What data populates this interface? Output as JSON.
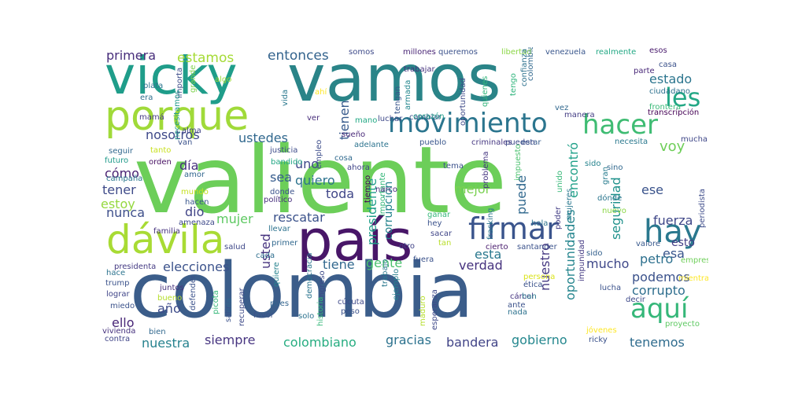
{
  "words": [
    {
      "text": "valiente",
      "color": "#6cce59"
    },
    {
      "text": "colombia",
      "color": "#3b5d8a"
    },
    {
      "text": "vamos",
      "color": "#2a8488"
    },
    {
      "text": "vicky",
      "color": "#1f9d8a"
    },
    {
      "text": "país",
      "color": "#481668"
    },
    {
      "text": "porque",
      "color": "#a0da39"
    },
    {
      "text": "dávila",
      "color": "#a8db34"
    },
    {
      "text": "movimiento",
      "color": "#2b758e"
    },
    {
      "text": "hacer",
      "color": "#3fbc73"
    },
    {
      "text": "hay",
      "color": "#2a788e"
    },
    {
      "text": "firmar",
      "color": "#3a548c"
    },
    {
      "text": "aquí",
      "color": "#35b779"
    },
    {
      "text": "les",
      "color": "#22a785"
    },
    {
      "text": "voy",
      "color": "#6ece58"
    },
    {
      "text": "estado",
      "color": "#2b758e"
    },
    {
      "text": "entonces",
      "color": "#33638d"
    },
    {
      "text": "estamos",
      "color": "#a5db36"
    },
    {
      "text": "primera",
      "color": "#472d7b"
    },
    {
      "text": "nosotros",
      "color": "#3e4989"
    },
    {
      "text": "ustedes",
      "color": "#31688e"
    },
    {
      "text": "presidente",
      "color": "#1f9e89"
    },
    {
      "text": "tienen",
      "color": "#375a8c"
    },
    {
      "text": "encontró",
      "color": "#1fa088"
    },
    {
      "text": "seguridad",
      "color": "#20928c"
    },
    {
      "text": "fuerza",
      "color": "#3f4788"
    },
    {
      "text": "esa",
      "color": "#39558c"
    },
    {
      "text": "ese",
      "color": "#3a538b"
    },
    {
      "text": "esto",
      "color": "#433e85"
    },
    {
      "text": "mucho",
      "color": "#3f4889"
    },
    {
      "text": "petro",
      "color": "#2d708e"
    },
    {
      "text": "podemos",
      "color": "#3b528b"
    },
    {
      "text": "corrupto",
      "color": "#2e6e8e"
    },
    {
      "text": "uno",
      "color": "#3f4889"
    },
    {
      "text": "sea",
      "color": "#365c8d"
    },
    {
      "text": "quiero",
      "color": "#2c728e"
    },
    {
      "text": "corrupción",
      "color": "#25848e"
    },
    {
      "text": "puede",
      "color": "#31688e"
    },
    {
      "text": "mejor",
      "color": "#7ad151"
    },
    {
      "text": "toda",
      "color": "#404688"
    },
    {
      "text": "día",
      "color": "#46307e"
    },
    {
      "text": "cómo",
      "color": "#481f71"
    },
    {
      "text": "tener",
      "color": "#3e4a89"
    },
    {
      "text": "estoy",
      "color": "#95d840"
    },
    {
      "text": "nunca",
      "color": "#3d4e8a"
    },
    {
      "text": "dio",
      "color": "#414487"
    },
    {
      "text": "mujer",
      "color": "#5ec962"
    },
    {
      "text": "rescatar",
      "color": "#3b528b"
    },
    {
      "text": "gente",
      "color": "#4ac16d"
    },
    {
      "text": "esta",
      "color": "#2a788e"
    },
    {
      "text": "tiene",
      "color": "#31688e"
    },
    {
      "text": "verdad",
      "color": "#46327e"
    },
    {
      "text": "nuestro",
      "color": "#453882"
    },
    {
      "text": "oportunidades",
      "color": "#25858e"
    },
    {
      "text": "elecciones",
      "color": "#3b528b"
    },
    {
      "text": "usted",
      "color": "#46337f"
    },
    {
      "text": "año",
      "color": "#3e4c8a"
    },
    {
      "text": "ello",
      "color": "#482677"
    },
    {
      "text": "nuestra",
      "color": "#26828e"
    },
    {
      "text": "siempre",
      "color": "#463480"
    },
    {
      "text": "colombiano",
      "color": "#27ad81"
    },
    {
      "text": "gracias",
      "color": "#2c728e"
    },
    {
      "text": "bandera",
      "color": "#414487"
    },
    {
      "text": "gobierno",
      "color": "#24878e"
    },
    {
      "text": "tenemos",
      "color": "#2f6c8e"
    },
    {
      "text": "somos",
      "color": "#3e4a89"
    },
    {
      "text": "millones",
      "color": "#482475"
    },
    {
      "text": "queremos",
      "color": "#3b528b"
    },
    {
      "text": "libertad",
      "color": "#8bd646"
    },
    {
      "text": "venezuela",
      "color": "#39568c"
    },
    {
      "text": "realmente",
      "color": "#22a884"
    },
    {
      "text": "esos",
      "color": "#481a6c"
    },
    {
      "text": "casa",
      "color": "#3b528b"
    },
    {
      "text": "parte",
      "color": "#482878"
    },
    {
      "text": "ciudadano",
      "color": "#2c718e"
    },
    {
      "text": "frontera",
      "color": "#38b977"
    },
    {
      "text": "transcripción",
      "color": "#440154"
    },
    {
      "text": "plata",
      "color": "#2b748e"
    },
    {
      "text": "importa",
      "color": "#3d4e8a"
    },
    {
      "text": "grande",
      "color": "#7fd34e"
    },
    {
      "text": "algo",
      "color": "#9bd93c"
    },
    {
      "text": "ahí",
      "color": "#fde725"
    },
    {
      "text": "era",
      "color": "#2e6f8e"
    },
    {
      "text": "necesitamos",
      "color": "#1f9a8a"
    },
    {
      "text": "vida",
      "color": "#2a788e"
    },
    {
      "text": "trabajar",
      "color": "#46337f"
    },
    {
      "text": "armada",
      "color": "#24878e"
    },
    {
      "text": "tengan",
      "color": "#39568c"
    },
    {
      "text": "colombia",
      "color": "#31688e"
    },
    {
      "text": "luchar",
      "color": "#3e4989"
    },
    {
      "text": "cambiar",
      "color": "#3b528b"
    },
    {
      "text": "oportunidad",
      "color": "#3e4a89"
    },
    {
      "text": "quienes",
      "color": "#31b57b"
    },
    {
      "text": "tengo",
      "color": "#2fb47c"
    },
    {
      "text": "confianza",
      "color": "#2d718e"
    },
    {
      "text": "vez",
      "color": "#31688e"
    },
    {
      "text": "manera",
      "color": "#433d84"
    },
    {
      "text": "corazón",
      "color": "#1f9e89"
    },
    {
      "text": "mano",
      "color": "#22a884"
    },
    {
      "text": "mamá",
      "color": "#443983"
    },
    {
      "text": "alma",
      "color": "#414487"
    },
    {
      "text": "van",
      "color": "#3b528b"
    },
    {
      "text": "ver",
      "color": "#472d7b"
    },
    {
      "text": "justicia",
      "color": "#3e4c8a"
    },
    {
      "text": "tanto",
      "color": "#c8e020"
    },
    {
      "text": "seguir",
      "color": "#31688e"
    },
    {
      "text": "bandido",
      "color": "#22a785"
    },
    {
      "text": "empleo",
      "color": "#3d4d8a"
    },
    {
      "text": "sueño",
      "color": "#482878"
    },
    {
      "text": "adelante",
      "color": "#2c738e"
    },
    {
      "text": "pueblo",
      "color": "#39568c"
    },
    {
      "text": "criminales",
      "color": "#453781"
    },
    {
      "text": "estar",
      "color": "#375b8d"
    },
    {
      "text": "pueden",
      "color": "#3e4a89"
    },
    {
      "text": "necesita",
      "color": "#2a788e"
    },
    {
      "text": "mucha",
      "color": "#3f4788"
    },
    {
      "text": "futuro",
      "color": "#1f9a8a"
    },
    {
      "text": "orden",
      "color": "#471063"
    },
    {
      "text": "cosa",
      "color": "#306a8e"
    },
    {
      "text": "ahora",
      "color": "#404588"
    },
    {
      "text": "tema",
      "color": "#3b518b"
    },
    {
      "text": "problema",
      "color": "#453581"
    },
    {
      "text": "impuesto",
      "color": "#4ac16d"
    },
    {
      "text": "unido",
      "color": "#37b878"
    },
    {
      "text": "sido",
      "color": "#25838e"
    },
    {
      "text": "gran",
      "color": "#287c8e"
    },
    {
      "text": "sino",
      "color": "#31688e"
    },
    {
      "text": "campaña",
      "color": "#2a778e"
    },
    {
      "text": "amor",
      "color": "#31668e"
    },
    {
      "text": "importante",
      "color": "#34b679"
    },
    {
      "text": "narco",
      "color": "#472c7a"
    },
    {
      "text": "periodista",
      "color": "#3e4c8a"
    },
    {
      "text": "mundo",
      "color": "#c5e021"
    },
    {
      "text": "donde",
      "color": "#3b528b"
    },
    {
      "text": "político",
      "color": "#472f7d"
    },
    {
      "text": "dónde",
      "color": "#2a768e"
    },
    {
      "text": "nuevo",
      "color": "#8bd646"
    },
    {
      "text": "hacen",
      "color": "#39568c"
    },
    {
      "text": "amenaza",
      "color": "#3e4989"
    },
    {
      "text": "ganar",
      "color": "#35b779"
    },
    {
      "text": "hey",
      "color": "#3b528b"
    },
    {
      "text": "hola",
      "color": "#2c728e"
    },
    {
      "text": "poder",
      "color": "#433e85"
    },
    {
      "text": "mujeres",
      "color": "#2a788e"
    },
    {
      "text": "fracking",
      "color": "#2a768e"
    },
    {
      "text": "familia",
      "color": "#46327e"
    },
    {
      "text": "salud",
      "color": "#3f4889"
    },
    {
      "text": "cada",
      "color": "#2e6e8e"
    },
    {
      "text": "sacar",
      "color": "#404688"
    },
    {
      "text": "primer",
      "color": "#31688e"
    },
    {
      "text": "tan",
      "color": "#b8de29"
    },
    {
      "text": "cierto",
      "color": "#481b6d"
    },
    {
      "text": "santander",
      "color": "#3b528b"
    },
    {
      "text": "valore",
      "color": "#38598c"
    },
    {
      "text": "empresa",
      "color": "#6ece58"
    },
    {
      "text": "otro",
      "color": "#404387"
    },
    {
      "text": "fuera",
      "color": "#3b528b"
    },
    {
      "text": "presidenta",
      "color": "#443a83"
    },
    {
      "text": "hace",
      "color": "#2c738e"
    },
    {
      "text": "llevar",
      "color": "#2c728e"
    },
    {
      "text": "democracia",
      "color": "#2b758e"
    },
    {
      "text": "trump",
      "color": "#3b528b"
    },
    {
      "text": "lograr",
      "color": "#404588"
    },
    {
      "text": "juntos",
      "color": "#46327e"
    },
    {
      "text": "bueno",
      "color": "#b5de2b"
    },
    {
      "text": "defender",
      "color": "#3b528b"
    },
    {
      "text": "ella",
      "color": "#31688e"
    },
    {
      "text": "quiere",
      "color": "#26828e"
    },
    {
      "text": "congreso",
      "color": "#3e4a89"
    },
    {
      "text": "historia",
      "color": "#35b779"
    },
    {
      "text": "pues",
      "color": "#32648e"
    },
    {
      "text": "tiempo",
      "color": "#440154"
    },
    {
      "text": "trabajo",
      "color": "#2a788e"
    },
    {
      "text": "ejemplo",
      "color": "#26818e"
    },
    {
      "text": "maduro",
      "color": "#b5de2b"
    },
    {
      "text": "esperanza",
      "color": "#3e4989"
    },
    {
      "text": "persona",
      "color": "#dae319"
    },
    {
      "text": "ética",
      "color": "#3b528b"
    },
    {
      "text": "cárcel",
      "color": "#463480"
    },
    {
      "text": "han",
      "color": "#2a788e"
    },
    {
      "text": "ante",
      "color": "#3b528b"
    },
    {
      "text": "nada",
      "color": "#2c728e"
    },
    {
      "text": "lucha",
      "color": "#3b528b"
    },
    {
      "text": "sido",
      "color": "#34608d"
    },
    {
      "text": "impunidad",
      "color": "#443a83"
    },
    {
      "text": "mientras",
      "color": "#fde725"
    },
    {
      "text": "decir",
      "color": "#3e4989"
    },
    {
      "text": "miedo",
      "color": "#3b528b"
    },
    {
      "text": "vivienda",
      "color": "#46327e"
    },
    {
      "text": "contra",
      "color": "#404588"
    },
    {
      "text": "bien",
      "color": "#31688e"
    },
    {
      "text": "picota",
      "color": "#35b779"
    },
    {
      "text": "salir",
      "color": "#3b528b"
    },
    {
      "text": "recuperar",
      "color": "#3e4a89"
    },
    {
      "text": "favor",
      "color": "#3b528b"
    },
    {
      "text": "solo",
      "color": "#2c728e"
    },
    {
      "text": "cúcuta",
      "color": "#3e4989"
    },
    {
      "text": "peso",
      "color": "#3b528b"
    },
    {
      "text": "jóvenes",
      "color": "#fde725"
    },
    {
      "text": "ricky",
      "color": "#3b528b"
    },
    {
      "text": "proyecto",
      "color": "#5ec962"
    }
  ]
}
